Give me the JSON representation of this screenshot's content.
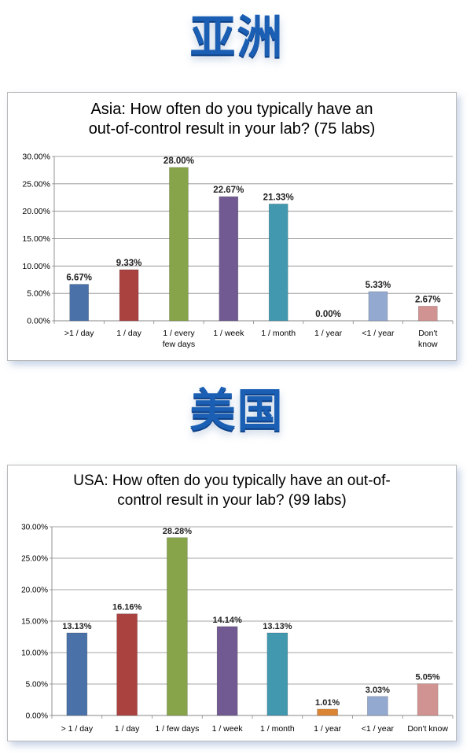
{
  "sections": [
    {
      "region_title": "亚洲",
      "chart_title_lines": [
        "Asia: How often do you typically have an",
        "out-of-control result in your lab? (75 labs)"
      ]
    },
    {
      "region_title": "美国",
      "chart_title_lines": [
        "USA: How often do you typically have an out-of-",
        "control result in your lab? (99 labs)"
      ]
    }
  ],
  "chart_data": [
    {
      "type": "bar",
      "title": "Asia: How often do you typically have an out-of-control result in your lab? (75 labs)",
      "categories": [
        ">1 / day",
        "1 / day",
        "1 / every few days",
        "1 / week",
        "1 / month",
        "1 / year",
        "<1 / year",
        "Don't know"
      ],
      "category_lines": [
        [
          ">1 / day"
        ],
        [
          "1 / day"
        ],
        [
          "1 / every",
          "few days"
        ],
        [
          "1 / week"
        ],
        [
          "1 / month"
        ],
        [
          "1 / year"
        ],
        [
          "<1 / year"
        ],
        [
          "Don't",
          "know"
        ]
      ],
      "values": [
        6.67,
        9.33,
        28.0,
        22.67,
        21.33,
        0.0,
        5.33,
        2.67
      ],
      "data_labels": [
        "6.67%",
        "9.33%",
        "28.00%",
        "22.67%",
        "21.33%",
        "0.00%",
        "5.33%",
        "2.67%"
      ],
      "colors": [
        "#4a72a8",
        "#aa4240",
        "#87a44a",
        "#715a91",
        "#4198af",
        "#d98533",
        "#93a9cf",
        "#d19392"
      ],
      "ylim": [
        0,
        30
      ],
      "yticks": [
        0,
        5,
        10,
        15,
        20,
        25,
        30
      ],
      "ytick_labels": [
        "0.00%",
        "5.00%",
        "10.00%",
        "15.00%",
        "20.00%",
        "25.00%",
        "30.00%"
      ],
      "grid": true,
      "legend": "none",
      "xlabel": "",
      "ylabel": ""
    },
    {
      "type": "bar",
      "title": "USA: How often do you typically have an out-of-control result in your lab? (99 labs)",
      "categories": [
        "> 1 / day",
        "1 / day",
        "1 / few days",
        "1 / week",
        "1 / month",
        "1 / year",
        "<1 / year",
        "Don't know"
      ],
      "category_lines": [
        [
          "> 1 / day"
        ],
        [
          "1 / day"
        ],
        [
          "1 / few days"
        ],
        [
          "1 / week"
        ],
        [
          "1 / month"
        ],
        [
          "1 / year"
        ],
        [
          "<1 / year"
        ],
        [
          "Don't know"
        ]
      ],
      "values": [
        13.13,
        16.16,
        28.28,
        14.14,
        13.13,
        1.01,
        3.03,
        5.05
      ],
      "data_labels": [
        "13.13%",
        "16.16%",
        "28.28%",
        "14.14%",
        "13.13%",
        "1.01%",
        "3.03%",
        "5.05%"
      ],
      "colors": [
        "#4a72a8",
        "#aa4240",
        "#87a44a",
        "#715a91",
        "#4198af",
        "#d98533",
        "#93a9cf",
        "#d19392"
      ],
      "ylim": [
        0,
        30
      ],
      "yticks": [
        0,
        5,
        10,
        15,
        20,
        25,
        30
      ],
      "ytick_labels": [
        "0.00%",
        "5.00%",
        "10.00%",
        "15.00%",
        "20.00%",
        "25.00%",
        "30.00%"
      ],
      "grid": true,
      "legend": "none",
      "xlabel": "",
      "ylabel": ""
    }
  ]
}
